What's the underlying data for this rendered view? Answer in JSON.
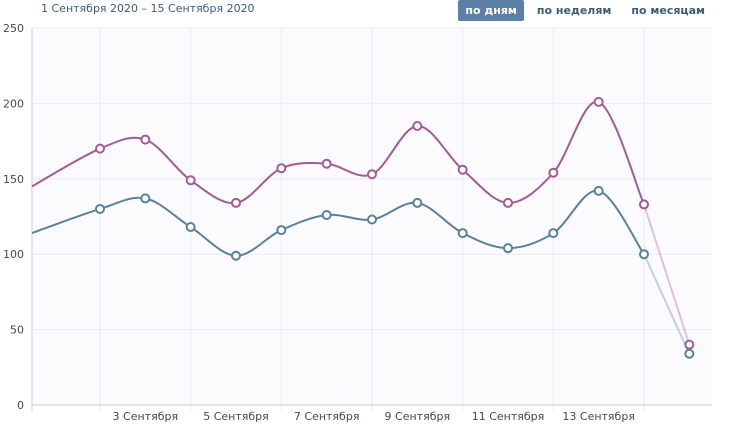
{
  "header": {
    "date_range": "1 Сентября 2020 – 15 Сентября 2020",
    "tabs": [
      {
        "label": "по дням",
        "active": true
      },
      {
        "label": "по неделям",
        "active": false
      },
      {
        "label": "по месяцам",
        "active": false
      }
    ]
  },
  "colors": {
    "accent": "#5b7fa6",
    "series_purple": "#a45a99",
    "series_blue": "#5a80a0",
    "grid": "#e8ebf2"
  },
  "chart_data": {
    "type": "line",
    "x": [
      1,
      2,
      3,
      4,
      5,
      6,
      7,
      8,
      9,
      10,
      11,
      12,
      13,
      14,
      15
    ],
    "xticks": [
      {
        "x": 3,
        "label": "3 Сентября"
      },
      {
        "x": 5,
        "label": "5 Сентября"
      },
      {
        "x": 7,
        "label": "7 Сентября"
      },
      {
        "x": 9,
        "label": "9 Сентября"
      },
      {
        "x": 11,
        "label": "11 Сентября"
      },
      {
        "x": 13,
        "label": "13 Сентября"
      }
    ],
    "yticks": [
      0,
      50,
      100,
      150,
      200,
      250
    ],
    "ylim": [
      0,
      250
    ],
    "grid": true,
    "series": [
      {
        "color": "#a45a99",
        "values": [
          145,
          170,
          176,
          149,
          134,
          157,
          160,
          153,
          185,
          156,
          134,
          154,
          201,
          133,
          40
        ]
      },
      {
        "color": "#5a80a0",
        "values": [
          114,
          130,
          137,
          118,
          99,
          116,
          126,
          123,
          134,
          114,
          104,
          114,
          142,
          100,
          34
        ]
      }
    ]
  }
}
